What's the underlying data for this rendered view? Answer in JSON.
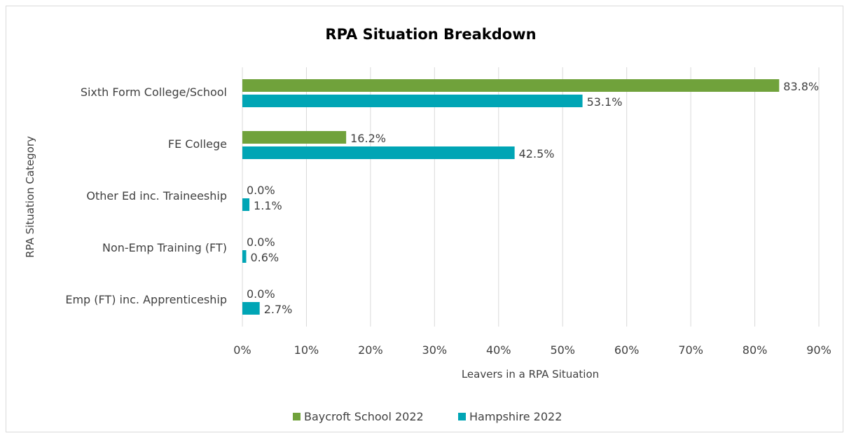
{
  "chart_data": {
    "type": "bar",
    "orientation": "horizontal",
    "title": "RPA Situation Breakdown",
    "xlabel": "Leavers in a RPA Situation",
    "ylabel": "RPA Situation Category",
    "categories": [
      "Sixth Form College/School",
      "FE College",
      "Other Ed inc. Traineeship",
      "Non-Emp Training (FT)",
      "Emp (FT) inc. Apprenticeship"
    ],
    "series": [
      {
        "name": "Baycroft School 2022",
        "color": "#70a23b",
        "values": [
          83.8,
          16.2,
          0.0,
          0.0,
          0.0
        ],
        "labels": [
          "83.8%",
          "16.2%",
          "0.0%",
          "0.0%",
          "0.0%"
        ]
      },
      {
        "name": "Hampshire 2022",
        "color": "#00a5b5",
        "values": [
          53.1,
          42.5,
          1.1,
          0.6,
          2.7
        ],
        "labels": [
          "53.1%",
          "42.5%",
          "1.1%",
          "0.6%",
          "2.7%"
        ]
      }
    ],
    "xlim": [
      0,
      90
    ],
    "xticks": [
      0,
      10,
      20,
      30,
      40,
      50,
      60,
      70,
      80,
      90
    ],
    "xtick_labels": [
      "0%",
      "10%",
      "20%",
      "30%",
      "40%",
      "50%",
      "60%",
      "70%",
      "80%",
      "90%"
    ],
    "grid": "vertical",
    "legend_position": "bottom"
  }
}
